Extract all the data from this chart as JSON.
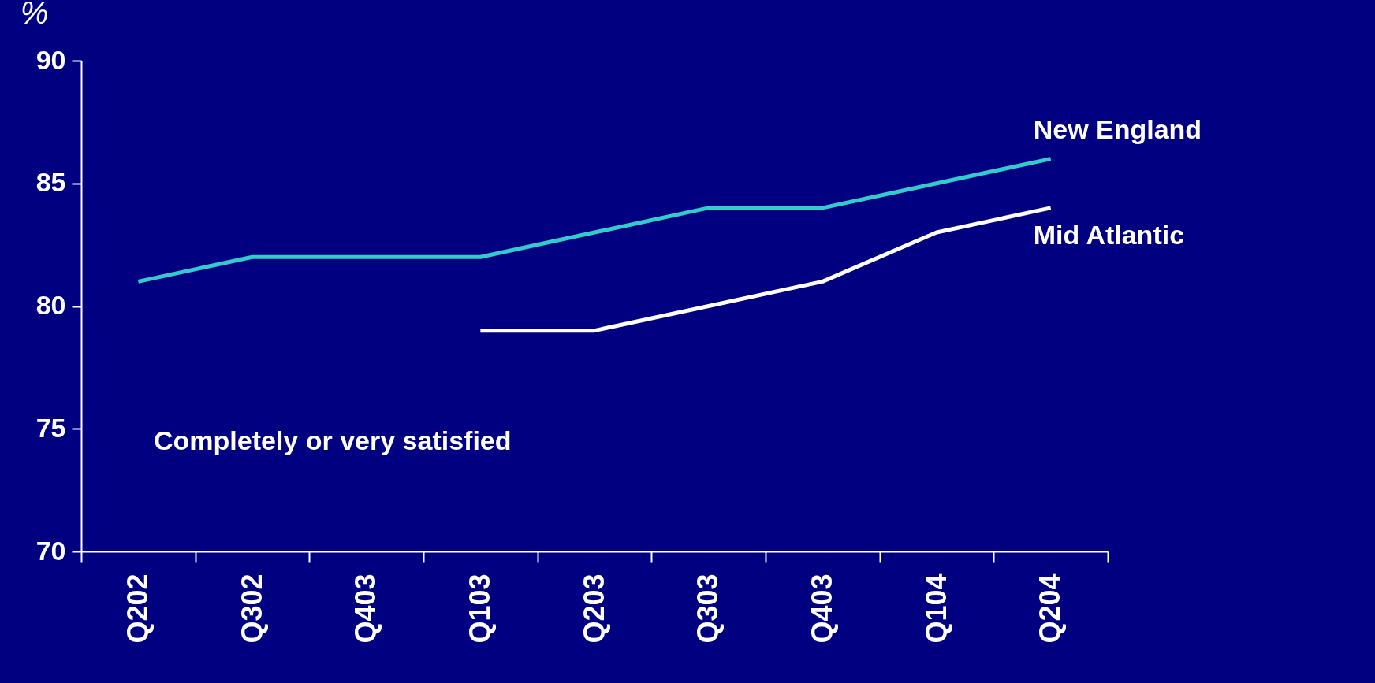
{
  "chart_data": {
    "type": "line",
    "ylabel": "%",
    "categories": [
      "Q202",
      "Q302",
      "Q403",
      "Q103",
      "Q203",
      "Q303",
      "Q403",
      "Q104",
      "Q204"
    ],
    "series": [
      {
        "name": "New England",
        "color": "#33cccc",
        "values": [
          81,
          82,
          82,
          82,
          83,
          84,
          84,
          85,
          86
        ]
      },
      {
        "name": "Mid Atlantic",
        "color": "#ffffff",
        "values": [
          null,
          null,
          null,
          79,
          79,
          80,
          81,
          83,
          84
        ]
      }
    ],
    "ylim": [
      70,
      90
    ],
    "yticks": [
      70,
      75,
      80,
      85,
      90
    ],
    "grid": false,
    "legend": false,
    "marker": "none",
    "line_style": "solid",
    "annotations": [
      "Completely or very satisfied"
    ]
  }
}
